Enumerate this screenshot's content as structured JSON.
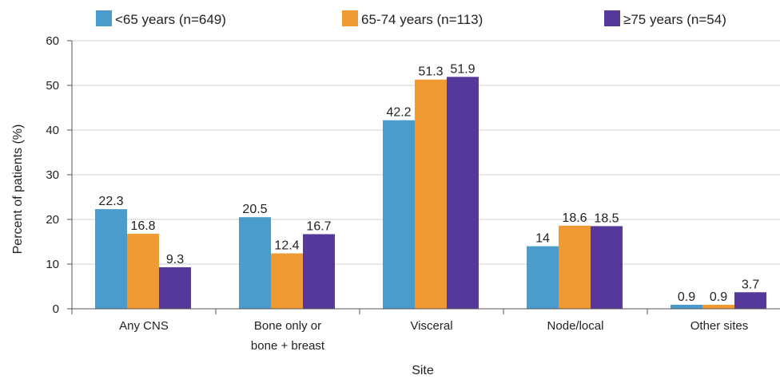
{
  "chart_data": {
    "type": "bar",
    "title": "",
    "xlabel": "Site",
    "ylabel": "Percent of patients (%)",
    "ylim": [
      0,
      60
    ],
    "yticks": [
      0,
      10,
      20,
      30,
      40,
      50,
      60
    ],
    "grid": "horizontal",
    "legend_position": "top",
    "categories": [
      [
        "Any CNS"
      ],
      [
        "Bone only or",
        "bone + breast"
      ],
      [
        "Visceral"
      ],
      [
        "Node/local"
      ],
      [
        "Other sites"
      ]
    ],
    "series": [
      {
        "name": "<65 years (n=649)",
        "color": "#4a9ccc",
        "values": [
          22.3,
          20.5,
          42.2,
          14,
          0.9
        ],
        "labels": [
          "22.3",
          "20.5",
          "42.2",
          "14",
          "0.9"
        ]
      },
      {
        "name": "65-74 years (n=113)",
        "color": "#f19a33",
        "values": [
          16.8,
          12.4,
          51.3,
          18.6,
          0.9
        ],
        "labels": [
          "16.8",
          "12.4",
          "51.3",
          "18.6",
          "0.9"
        ]
      },
      {
        "name": "≥75 years (n=54)",
        "color": "#55389a",
        "values": [
          9.3,
          16.7,
          51.9,
          18.5,
          3.7
        ],
        "labels": [
          "9.3",
          "16.7",
          "51.9",
          "18.5",
          "3.7"
        ]
      }
    ]
  }
}
